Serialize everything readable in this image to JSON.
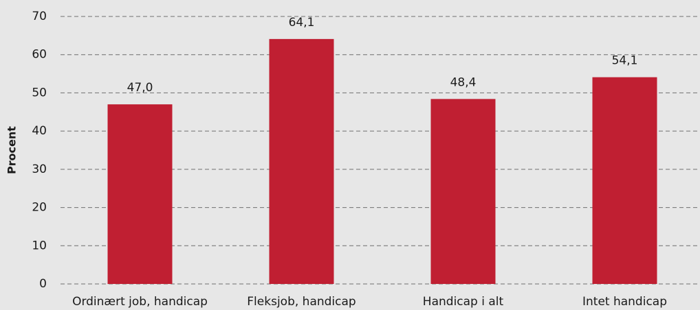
{
  "chart_data": {
    "type": "bar",
    "y_label": "Procent",
    "categories": [
      "Ordinært job, handicap",
      "Fleksjob, handicap",
      "Handicap i alt",
      "Intet handicap"
    ],
    "values": [
      47.0,
      64.1,
      48.4,
      54.1
    ],
    "value_labels": [
      "47,0",
      "64,1",
      "48,4",
      "54,1"
    ],
    "color": "#c01f32",
    "ylim": [
      0,
      70
    ],
    "yticks": [
      0,
      10,
      20,
      30,
      40,
      50,
      60,
      70
    ],
    "grid": true
  }
}
